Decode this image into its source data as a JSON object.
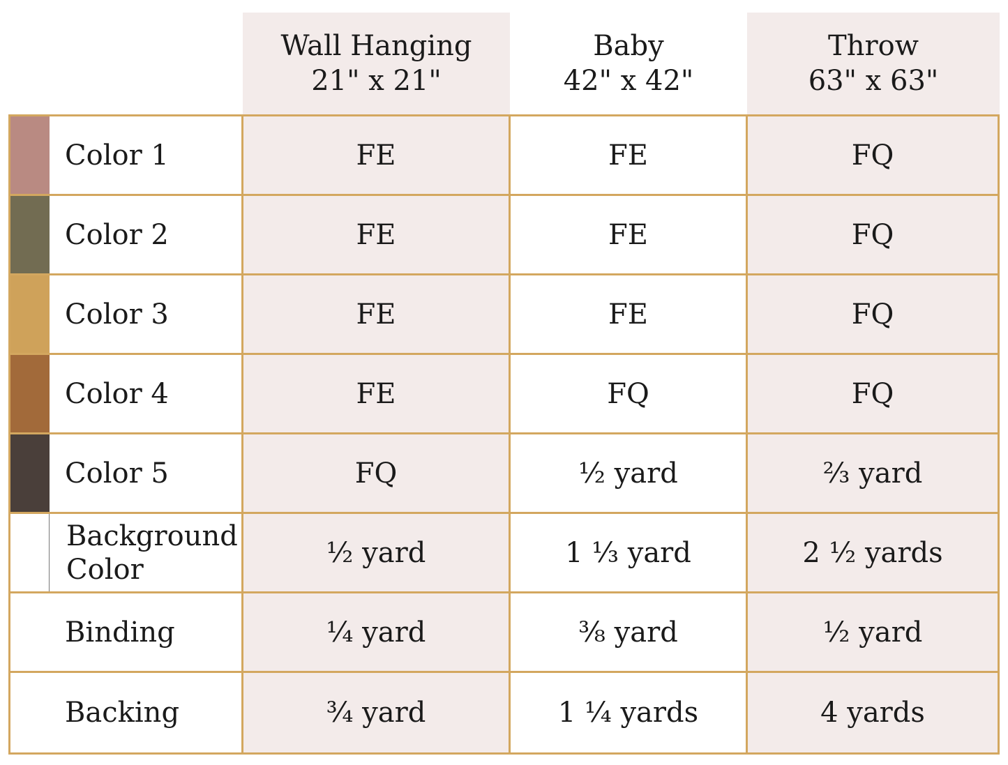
{
  "columns": [
    {
      "name_line": "Wall Hanging",
      "size_line": "21\" x 21\""
    },
    {
      "name_line": "Baby",
      "size_line": "42\" x 42\""
    },
    {
      "name_line": "Throw",
      "size_line": "63\" x 63\""
    }
  ],
  "rows": [
    {
      "label": "Color 1",
      "swatch_color": "#b98a82",
      "values": [
        "FE",
        "FE",
        "FQ"
      ]
    },
    {
      "label": "Color 2",
      "swatch_color": "#726c52",
      "values": [
        "FE",
        "FE",
        "FQ"
      ]
    },
    {
      "label": "Color 3",
      "swatch_color": "#cfa25a",
      "values": [
        "FE",
        "FE",
        "FQ"
      ]
    },
    {
      "label": "Color 4",
      "swatch_color": "#a26a3a",
      "values": [
        "FE",
        "FQ",
        "FQ"
      ]
    },
    {
      "label": "Color 5",
      "swatch_color": "#4a3f3a",
      "values": [
        "FQ",
        "½ yard",
        "⅔ yard"
      ]
    },
    {
      "label_line1": "Background",
      "label_line2": "Color",
      "swatch_color": "#ffffff",
      "values": [
        "½ yard",
        "1 ⅓ yard",
        "2 ½ yards"
      ]
    },
    {
      "label": "Binding",
      "values": [
        "¼ yard",
        "⅜ yard",
        "½ yard"
      ]
    },
    {
      "label": "Backing",
      "values": [
        "¾ yard",
        "1 ¼ yards",
        "4 yards"
      ]
    }
  ],
  "colors": {
    "border": "#d3a75f",
    "header_fill": "#f3ebea"
  }
}
